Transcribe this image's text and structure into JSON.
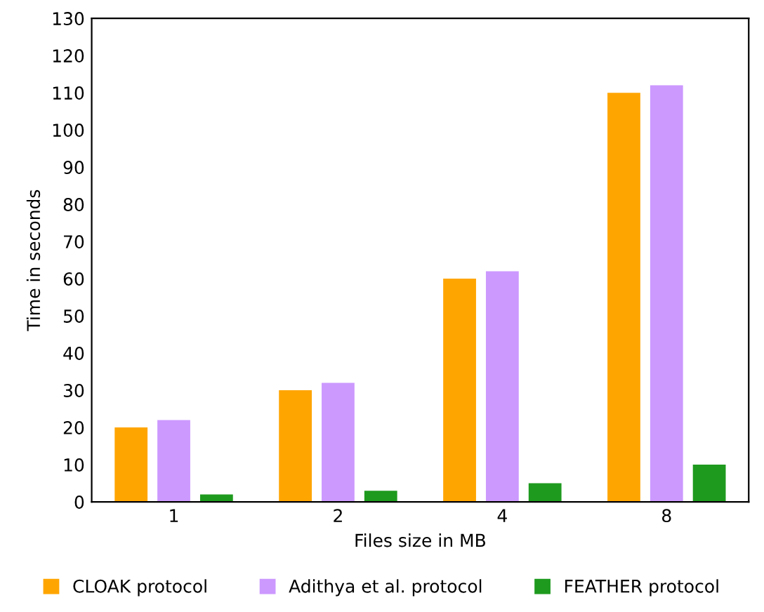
{
  "chart_data": {
    "type": "bar",
    "xlabel": "Files size in MB",
    "ylabel": "Time in seconds",
    "categories": [
      "1",
      "2",
      "4",
      "8"
    ],
    "series": [
      {
        "name": "CLOAK protocol",
        "color": "#ffa500",
        "values": [
          20,
          30,
          60,
          110
        ]
      },
      {
        "name": "Adithya et al. protocol",
        "color": "#cc99ff",
        "values": [
          22,
          32,
          62,
          112
        ]
      },
      {
        "name": "FEATHER protocol",
        "color": "#1e9a1e",
        "values": [
          2,
          3,
          5,
          10
        ]
      }
    ],
    "ylim": [
      0,
      130
    ],
    "yticks": [
      0,
      10,
      20,
      30,
      40,
      50,
      60,
      70,
      80,
      90,
      100,
      110,
      120,
      130
    ],
    "grid": false,
    "legend": "bottom"
  }
}
